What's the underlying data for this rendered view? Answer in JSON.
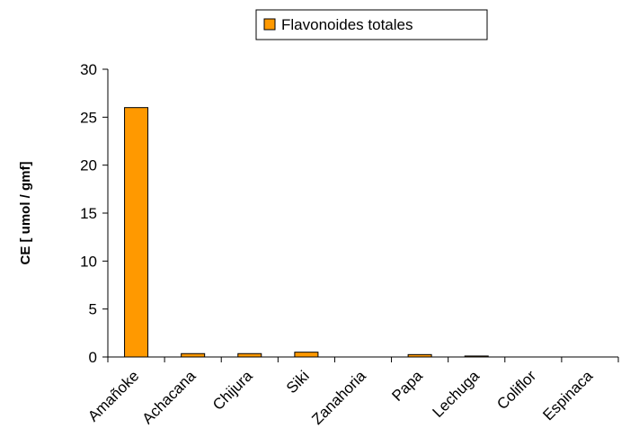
{
  "chart_data": {
    "type": "bar",
    "categories": [
      "Amañoke",
      "Achacana",
      "Chijura",
      "Siki",
      "Zanahoria",
      "Papa",
      "Lechuga",
      "Coliflor",
      "Espinaca"
    ],
    "series": [
      {
        "name": "Flavonoides totales",
        "values": [
          26.0,
          0.35,
          0.35,
          0.5,
          0.0,
          0.25,
          0.1,
          0.0,
          0.0
        ],
        "color": "#FF9900"
      }
    ],
    "ylabel": "CE [ umol / gmf]",
    "xlabel": "",
    "ylim": [
      0,
      30
    ],
    "yticks": [
      0,
      5,
      10,
      15,
      20,
      25,
      30
    ],
    "grid": false,
    "legend": "top-center"
  }
}
